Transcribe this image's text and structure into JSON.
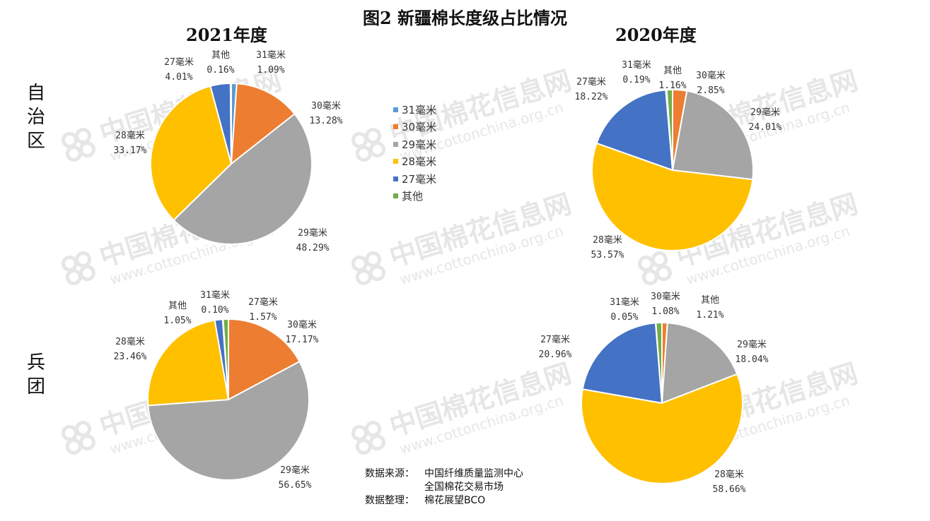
{
  "title": "图2 新疆棉长度级占比情况",
  "column_titles": [
    "2021年度",
    "2020年度"
  ],
  "row_titles": [
    "自治区",
    "兵团"
  ],
  "watermark": {
    "cn": "中国棉花信息网",
    "url": "www.cottonchina.org.cn"
  },
  "colors": {
    "31毫米": "#5B9BD5",
    "30毫米": "#ED7D31",
    "29毫米": "#A5A5A5",
    "28毫米": "#FFC000",
    "27毫米": "#4472C4",
    "其他": "#70AD47"
  },
  "legend": [
    "31毫米",
    "30毫米",
    "29毫米",
    "28毫米",
    "27毫米",
    "其他"
  ],
  "chart_data": [
    {
      "type": "pie",
      "group": "自治区",
      "year": "2021年度",
      "labels": [
        "31毫米",
        "30毫米",
        "29毫米",
        "28毫米",
        "27毫米",
        "其他"
      ],
      "values": [
        1.09,
        13.28,
        48.29,
        33.17,
        4.01,
        0.16
      ],
      "value_labels": [
        "1.09%",
        "13.28%",
        "48.29%",
        "33.17%",
        "4.01%",
        "0.16%"
      ]
    },
    {
      "type": "pie",
      "group": "自治区",
      "year": "2020年度",
      "labels": [
        "30毫米",
        "29毫米",
        "28毫米",
        "27毫米",
        "31毫米",
        "其他"
      ],
      "values": [
        2.85,
        24.01,
        53.57,
        18.22,
        0.19,
        1.16
      ],
      "value_labels": [
        "2.85%",
        "24.01%",
        "53.57%",
        "18.22%",
        "0.19%",
        "1.16%"
      ]
    },
    {
      "type": "pie",
      "group": "兵团",
      "year": "2021年度",
      "labels": [
        "30毫米",
        "29毫米",
        "28毫米",
        "27毫米",
        "31毫米",
        "其他"
      ],
      "values": [
        17.17,
        56.65,
        23.46,
        1.57,
        0.1,
        1.05
      ],
      "value_labels": [
        "17.17%",
        "56.65%",
        "23.46%",
        "1.57%",
        "0.10%",
        "1.05%"
      ]
    },
    {
      "type": "pie",
      "group": "兵团",
      "year": "2020年度",
      "labels": [
        "30毫米",
        "29毫米",
        "28毫米",
        "27毫米",
        "31毫米",
        "其他"
      ],
      "values": [
        1.08,
        18.04,
        58.66,
        20.96,
        0.05,
        1.21
      ],
      "value_labels": [
        "1.08%",
        "18.04%",
        "58.66%",
        "20.96%",
        "0.05%",
        "1.21%"
      ]
    }
  ],
  "source": {
    "label1": "数据来源：",
    "line1": "中国纤维质量监测中心",
    "line2": "全国棉花交易市场",
    "label2": "数据整理：",
    "line3": "棉花展望BCO"
  }
}
